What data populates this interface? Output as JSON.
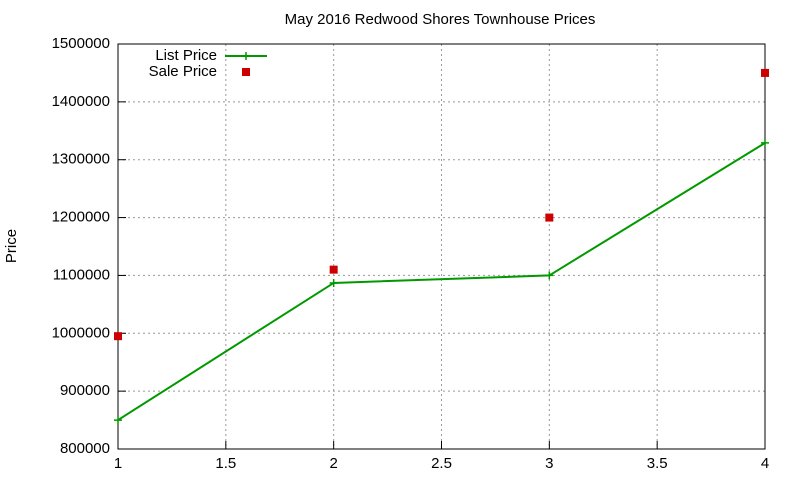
{
  "chart_data": {
    "type": "line",
    "title": "May 2016 Redwood Shores Townhouse Prices",
    "y_label": "Price",
    "x": [
      1,
      2,
      3,
      4
    ],
    "series": [
      {
        "name": "List Price",
        "color": "#009900",
        "mode": "lines+points",
        "values": [
          850000,
          1087000,
          1100000,
          1329000
        ]
      },
      {
        "name": "Sale Price",
        "color": "#cc0000",
        "mode": "points",
        "values": [
          995000,
          1110000,
          1200000,
          1450000
        ]
      }
    ],
    "xlim": [
      1,
      4
    ],
    "xticks": [
      1,
      1.5,
      2,
      2.5,
      3,
      3.5,
      4
    ],
    "ylim": [
      800000,
      1500000
    ],
    "yticks": [
      800000,
      900000,
      1000000,
      1100000,
      1200000,
      1300000,
      1400000,
      1500000
    ],
    "grid": true,
    "legend": "top-left"
  }
}
